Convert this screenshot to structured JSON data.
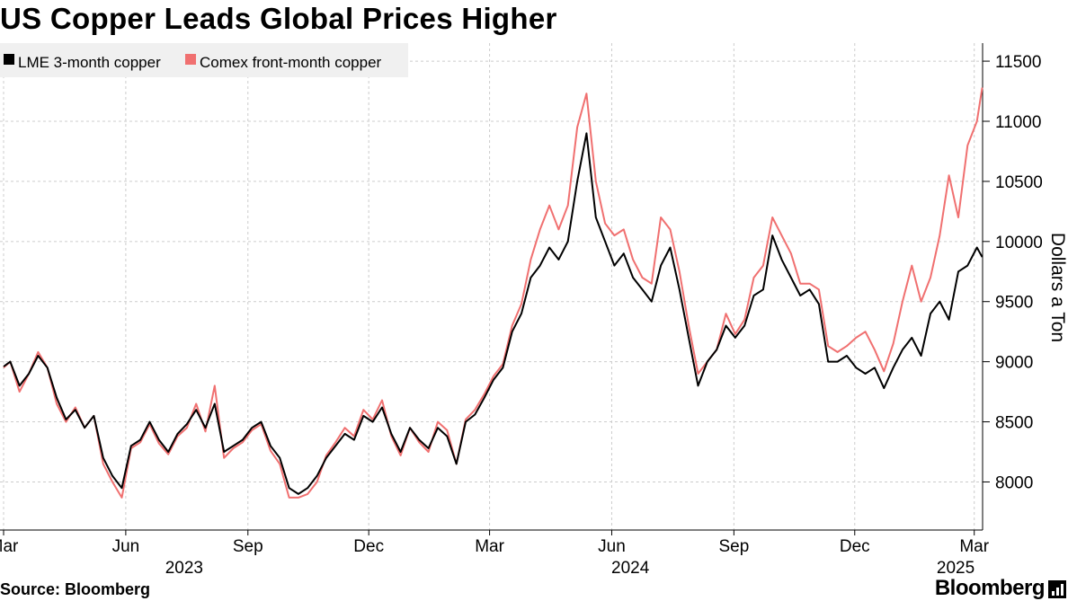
{
  "title": "US Copper Leads Global Prices Higher",
  "source": "Source: Bloomberg",
  "brand": "Bloomberg",
  "colors": {
    "lme": "#000000",
    "comex": "#f07070",
    "grid": "#cccccc",
    "legend_bg": "#f0f0f0"
  },
  "chart_data": {
    "type": "line",
    "title": "US Copper Leads Global Prices Higher",
    "ylabel": "Dollars a Ton",
    "xlabel": "",
    "ylim": [
      7600,
      11650
    ],
    "yticks": [
      8000,
      8500,
      9000,
      9500,
      10000,
      10500,
      11000,
      11500
    ],
    "x_range": [
      "2023-03-01",
      "2025-03-10"
    ],
    "month_ticks": [
      {
        "label": "Mar",
        "date": "2023-03-01"
      },
      {
        "label": "Jun",
        "date": "2023-06-01"
      },
      {
        "label": "Sep",
        "date": "2023-09-01"
      },
      {
        "label": "Dec",
        "date": "2023-12-01"
      },
      {
        "label": "Mar",
        "date": "2024-03-01"
      },
      {
        "label": "Jun",
        "date": "2024-06-01"
      },
      {
        "label": "Sep",
        "date": "2024-09-01"
      },
      {
        "label": "Dec",
        "date": "2024-12-01"
      },
      {
        "label": "Mar",
        "date": "2025-03-01"
      }
    ],
    "year_labels": [
      {
        "label": "2023",
        "date": "2023-07-15"
      },
      {
        "label": "2024",
        "date": "2024-06-15"
      },
      {
        "label": "2025",
        "date": "2025-02-15"
      }
    ],
    "legend": [
      "LME 3-month copper",
      "Comex front-month copper"
    ],
    "series": [
      {
        "name": "LME 3-month copper",
        "x": [
          "2023-03-01",
          "2023-03-06",
          "2023-03-13",
          "2023-03-20",
          "2023-03-27",
          "2023-04-03",
          "2023-04-10",
          "2023-04-17",
          "2023-04-24",
          "2023-05-01",
          "2023-05-08",
          "2023-05-15",
          "2023-05-22",
          "2023-05-29",
          "2023-06-05",
          "2023-06-12",
          "2023-06-19",
          "2023-06-26",
          "2023-07-03",
          "2023-07-10",
          "2023-07-17",
          "2023-07-24",
          "2023-07-31",
          "2023-08-07",
          "2023-08-14",
          "2023-08-21",
          "2023-08-28",
          "2023-09-04",
          "2023-09-11",
          "2023-09-18",
          "2023-09-25",
          "2023-10-02",
          "2023-10-09",
          "2023-10-16",
          "2023-10-23",
          "2023-10-30",
          "2023-11-06",
          "2023-11-13",
          "2023-11-20",
          "2023-11-27",
          "2023-12-04",
          "2023-12-11",
          "2023-12-18",
          "2023-12-25",
          "2024-01-01",
          "2024-01-08",
          "2024-01-15",
          "2024-01-22",
          "2024-01-29",
          "2024-02-05",
          "2024-02-12",
          "2024-02-19",
          "2024-02-26",
          "2024-03-04",
          "2024-03-11",
          "2024-03-18",
          "2024-03-25",
          "2024-04-01",
          "2024-04-08",
          "2024-04-15",
          "2024-04-22",
          "2024-04-29",
          "2024-05-06",
          "2024-05-13",
          "2024-05-20",
          "2024-05-27",
          "2024-06-03",
          "2024-06-10",
          "2024-06-17",
          "2024-06-24",
          "2024-07-01",
          "2024-07-08",
          "2024-07-15",
          "2024-07-22",
          "2024-07-29",
          "2024-08-05",
          "2024-08-12",
          "2024-08-19",
          "2024-08-26",
          "2024-09-02",
          "2024-09-09",
          "2024-09-16",
          "2024-09-23",
          "2024-09-30",
          "2024-10-07",
          "2024-10-14",
          "2024-10-21",
          "2024-10-28",
          "2024-11-04",
          "2024-11-11",
          "2024-11-18",
          "2024-11-25",
          "2024-12-02",
          "2024-12-09",
          "2024-12-16",
          "2024-12-23",
          "2024-12-30",
          "2025-01-06",
          "2025-01-13",
          "2025-01-20",
          "2025-01-27",
          "2025-02-03",
          "2025-02-10",
          "2025-02-17",
          "2025-02-24",
          "2025-03-03",
          "2025-03-07"
        ],
        "values": [
          8960,
          9000,
          8800,
          8900,
          9050,
          8950,
          8700,
          8520,
          8600,
          8450,
          8550,
          8200,
          8050,
          7950,
          8300,
          8350,
          8500,
          8350,
          8250,
          8400,
          8480,
          8600,
          8450,
          8650,
          8250,
          8300,
          8350,
          8450,
          8500,
          8300,
          8200,
          7950,
          7900,
          7950,
          8050,
          8200,
          8300,
          8400,
          8350,
          8550,
          8500,
          8620,
          8400,
          8250,
          8450,
          8350,
          8280,
          8450,
          8380,
          8150,
          8500,
          8560,
          8700,
          8850,
          8950,
          9250,
          9400,
          9700,
          9800,
          9950,
          9850,
          10000,
          10500,
          10900,
          10200,
          10000,
          9800,
          9900,
          9700,
          9600,
          9500,
          9800,
          9950,
          9600,
          9200,
          8800,
          9000,
          9100,
          9300,
          9200,
          9300,
          9550,
          9600,
          10050,
          9850,
          9700,
          9550,
          9600,
          9480,
          9000,
          9000,
          9050,
          8950,
          8900,
          8950,
          8780,
          8950,
          9100,
          9200,
          9050,
          9400,
          9500,
          9350,
          9750,
          9800,
          9950,
          9870
        ]
      },
      {
        "name": "Comex front-month copper",
        "x": [
          "2023-03-01",
          "2023-03-06",
          "2023-03-13",
          "2023-03-20",
          "2023-03-27",
          "2023-04-03",
          "2023-04-10",
          "2023-04-17",
          "2023-04-24",
          "2023-05-01",
          "2023-05-08",
          "2023-05-15",
          "2023-05-22",
          "2023-05-29",
          "2023-06-05",
          "2023-06-12",
          "2023-06-19",
          "2023-06-26",
          "2023-07-03",
          "2023-07-10",
          "2023-07-17",
          "2023-07-24",
          "2023-07-31",
          "2023-08-07",
          "2023-08-14",
          "2023-08-21",
          "2023-08-28",
          "2023-09-04",
          "2023-09-11",
          "2023-09-18",
          "2023-09-25",
          "2023-10-02",
          "2023-10-09",
          "2023-10-16",
          "2023-10-23",
          "2023-10-30",
          "2023-11-06",
          "2023-11-13",
          "2023-11-20",
          "2023-11-27",
          "2023-12-04",
          "2023-12-11",
          "2023-12-18",
          "2023-12-25",
          "2024-01-01",
          "2024-01-08",
          "2024-01-15",
          "2024-01-22",
          "2024-01-29",
          "2024-02-05",
          "2024-02-12",
          "2024-02-19",
          "2024-02-26",
          "2024-03-04",
          "2024-03-11",
          "2024-03-18",
          "2024-03-25",
          "2024-04-01",
          "2024-04-08",
          "2024-04-15",
          "2024-04-22",
          "2024-04-29",
          "2024-05-06",
          "2024-05-13",
          "2024-05-20",
          "2024-05-27",
          "2024-06-03",
          "2024-06-10",
          "2024-06-17",
          "2024-06-24",
          "2024-07-01",
          "2024-07-08",
          "2024-07-15",
          "2024-07-22",
          "2024-07-29",
          "2024-08-05",
          "2024-08-12",
          "2024-08-19",
          "2024-08-26",
          "2024-09-02",
          "2024-09-09",
          "2024-09-16",
          "2024-09-23",
          "2024-09-30",
          "2024-10-07",
          "2024-10-14",
          "2024-10-21",
          "2024-10-28",
          "2024-11-04",
          "2024-11-11",
          "2024-11-18",
          "2024-11-25",
          "2024-12-02",
          "2024-12-09",
          "2024-12-16",
          "2024-12-23",
          "2024-12-30",
          "2025-01-06",
          "2025-01-13",
          "2025-01-20",
          "2025-01-27",
          "2025-02-03",
          "2025-02-10",
          "2025-02-17",
          "2025-02-24",
          "2025-03-03",
          "2025-03-07"
        ],
        "values": [
          8950,
          9000,
          8750,
          8900,
          9080,
          8950,
          8650,
          8500,
          8620,
          8450,
          8550,
          8150,
          8000,
          7870,
          8280,
          8330,
          8480,
          8320,
          8230,
          8380,
          8450,
          8650,
          8420,
          8800,
          8200,
          8280,
          8330,
          8430,
          8480,
          8260,
          8150,
          7870,
          7870,
          7900,
          8000,
          8220,
          8330,
          8450,
          8380,
          8600,
          8520,
          8680,
          8380,
          8220,
          8450,
          8330,
          8250,
          8500,
          8430,
          8150,
          8520,
          8600,
          8730,
          8880,
          8980,
          9300,
          9480,
          9850,
          10100,
          10300,
          10100,
          10300,
          10950,
          11230,
          10500,
          10150,
          10050,
          10100,
          9850,
          9700,
          9650,
          10200,
          10100,
          9750,
          9300,
          8900,
          9000,
          9100,
          9400,
          9230,
          9350,
          9700,
          9800,
          10200,
          10050,
          9900,
          9650,
          9650,
          9600,
          9130,
          9080,
          9130,
          9200,
          9250,
          9100,
          8920,
          9150,
          9500,
          9800,
          9500,
          9700,
          10050,
          10550,
          10200,
          10800,
          11000,
          11280
        ]
      }
    ]
  }
}
